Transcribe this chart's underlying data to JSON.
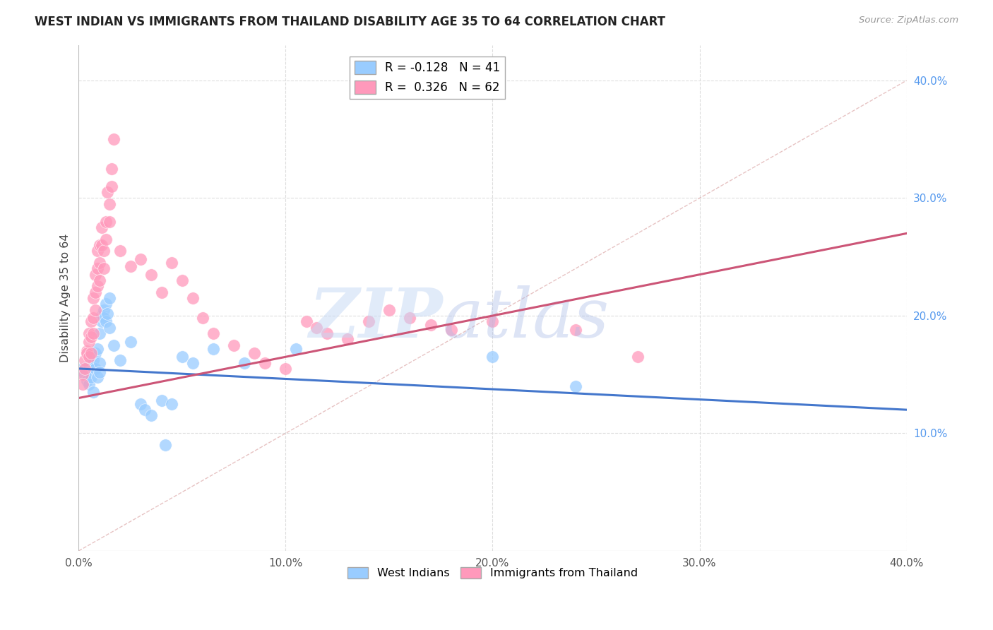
{
  "title": "WEST INDIAN VS IMMIGRANTS FROM THAILAND DISABILITY AGE 35 TO 64 CORRELATION CHART",
  "source": "Source: ZipAtlas.com",
  "ylabel": "Disability Age 35 to 64",
  "x_tick_labels": [
    "0.0%",
    "10.0%",
    "20.0%",
    "30.0%",
    "40.0%"
  ],
  "x_tick_values": [
    0.0,
    10.0,
    20.0,
    30.0,
    40.0
  ],
  "y_tick_labels": [
    "10.0%",
    "20.0%",
    "30.0%",
    "40.0%"
  ],
  "y_tick_values": [
    10.0,
    20.0,
    30.0,
    40.0
  ],
  "xlim": [
    0.0,
    40.0
  ],
  "ylim": [
    0.0,
    43.0
  ],
  "legend_labels": [
    "West Indians",
    "Immigrants from Thailand"
  ],
  "r_blue": -0.128,
  "n_blue": 41,
  "r_pink": 0.326,
  "n_pink": 62,
  "blue_color": "#99CCFF",
  "pink_color": "#FF99BB",
  "blue_line_color": "#4477CC",
  "pink_line_color": "#CC5577",
  "diag_line_color": "#DDAAAA",
  "blue_points": [
    [
      0.2,
      15.5
    ],
    [
      0.3,
      15.0
    ],
    [
      0.4,
      14.5
    ],
    [
      0.5,
      15.8
    ],
    [
      0.5,
      14.2
    ],
    [
      0.6,
      16.5
    ],
    [
      0.6,
      14.8
    ],
    [
      0.7,
      16.2
    ],
    [
      0.7,
      13.5
    ],
    [
      0.8,
      16.8
    ],
    [
      0.8,
      15.5
    ],
    [
      0.9,
      17.2
    ],
    [
      0.9,
      14.8
    ],
    [
      1.0,
      18.5
    ],
    [
      1.0,
      16.0
    ],
    [
      1.0,
      15.2
    ],
    [
      1.1,
      19.5
    ],
    [
      1.1,
      20.0
    ],
    [
      1.2,
      20.5
    ],
    [
      1.2,
      19.8
    ],
    [
      1.3,
      21.0
    ],
    [
      1.3,
      19.5
    ],
    [
      1.4,
      20.2
    ],
    [
      1.5,
      21.5
    ],
    [
      1.5,
      19.0
    ],
    [
      1.7,
      17.5
    ],
    [
      2.0,
      16.2
    ],
    [
      2.5,
      17.8
    ],
    [
      3.0,
      12.5
    ],
    [
      3.2,
      12.0
    ],
    [
      3.5,
      11.5
    ],
    [
      4.0,
      12.8
    ],
    [
      4.2,
      9.0
    ],
    [
      4.5,
      12.5
    ],
    [
      5.0,
      16.5
    ],
    [
      5.5,
      16.0
    ],
    [
      6.5,
      17.2
    ],
    [
      8.0,
      16.0
    ],
    [
      10.5,
      17.2
    ],
    [
      20.0,
      16.5
    ],
    [
      24.0,
      14.0
    ]
  ],
  "pink_points": [
    [
      0.2,
      15.0
    ],
    [
      0.2,
      14.2
    ],
    [
      0.3,
      16.2
    ],
    [
      0.3,
      15.5
    ],
    [
      0.4,
      17.0
    ],
    [
      0.4,
      16.8
    ],
    [
      0.5,
      18.5
    ],
    [
      0.5,
      17.8
    ],
    [
      0.5,
      16.5
    ],
    [
      0.6,
      19.5
    ],
    [
      0.6,
      18.2
    ],
    [
      0.6,
      16.8
    ],
    [
      0.7,
      21.5
    ],
    [
      0.7,
      19.8
    ],
    [
      0.7,
      18.5
    ],
    [
      0.8,
      23.5
    ],
    [
      0.8,
      22.0
    ],
    [
      0.8,
      20.5
    ],
    [
      0.9,
      25.5
    ],
    [
      0.9,
      24.0
    ],
    [
      0.9,
      22.5
    ],
    [
      1.0,
      26.0
    ],
    [
      1.0,
      24.5
    ],
    [
      1.0,
      23.0
    ],
    [
      1.1,
      27.5
    ],
    [
      1.1,
      26.0
    ],
    [
      1.2,
      25.5
    ],
    [
      1.2,
      24.0
    ],
    [
      1.3,
      28.0
    ],
    [
      1.3,
      26.5
    ],
    [
      1.4,
      30.5
    ],
    [
      1.5,
      29.5
    ],
    [
      1.5,
      28.0
    ],
    [
      1.6,
      32.5
    ],
    [
      1.6,
      31.0
    ],
    [
      1.7,
      35.0
    ],
    [
      2.0,
      25.5
    ],
    [
      2.5,
      24.2
    ],
    [
      3.0,
      24.8
    ],
    [
      3.5,
      23.5
    ],
    [
      4.0,
      22.0
    ],
    [
      4.5,
      24.5
    ],
    [
      5.0,
      23.0
    ],
    [
      5.5,
      21.5
    ],
    [
      6.0,
      19.8
    ],
    [
      6.5,
      18.5
    ],
    [
      7.5,
      17.5
    ],
    [
      8.5,
      16.8
    ],
    [
      9.0,
      16.0
    ],
    [
      10.0,
      15.5
    ],
    [
      11.0,
      19.5
    ],
    [
      11.5,
      19.0
    ],
    [
      12.0,
      18.5
    ],
    [
      13.0,
      18.0
    ],
    [
      14.0,
      19.5
    ],
    [
      15.0,
      20.5
    ],
    [
      16.0,
      19.8
    ],
    [
      17.0,
      19.2
    ],
    [
      18.0,
      18.8
    ],
    [
      20.0,
      19.5
    ],
    [
      24.0,
      18.8
    ],
    [
      27.0,
      16.5
    ]
  ]
}
